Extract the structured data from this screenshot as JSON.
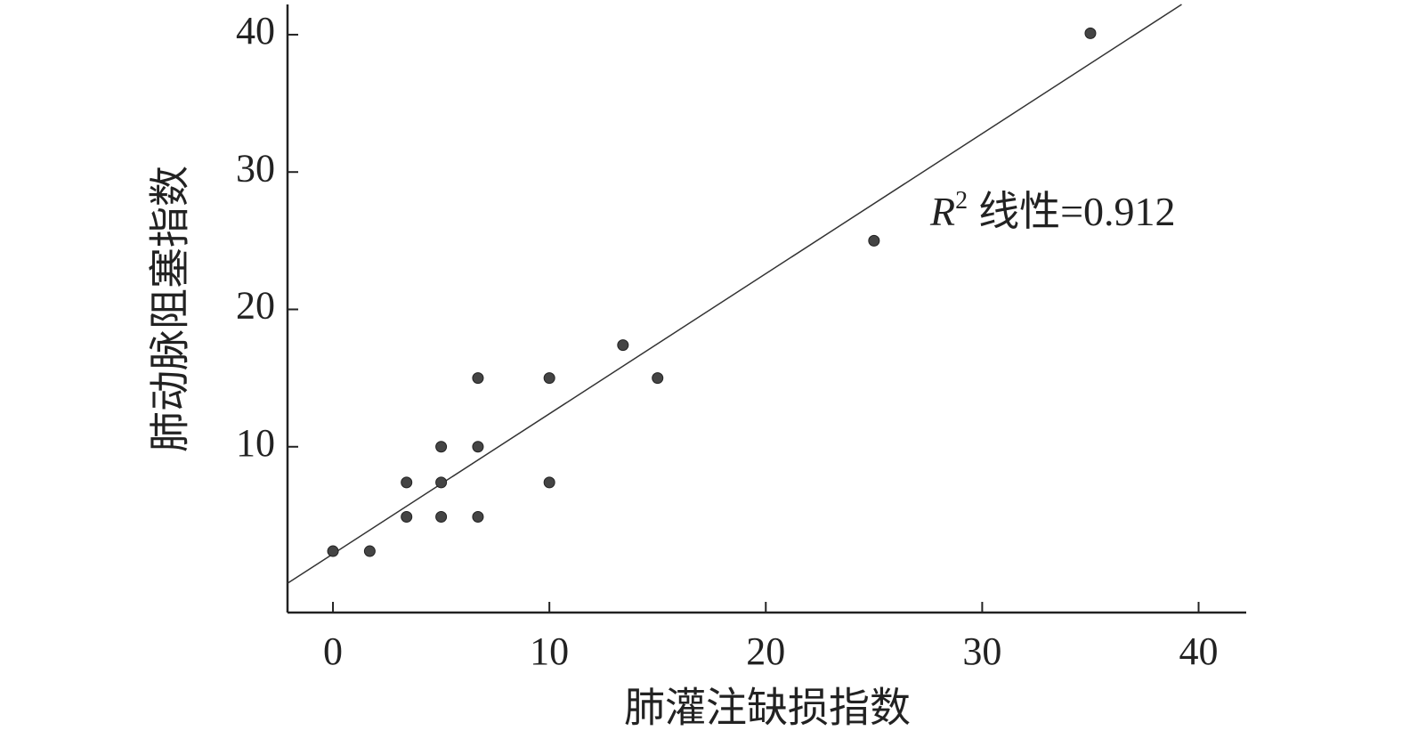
{
  "chart_data": {
    "type": "scatter",
    "x_label": "肺灌注缺损指数",
    "y_label": "肺动脉阻塞指数",
    "xlim": [
      -2.1,
      42.2
    ],
    "ylim": [
      -2.07,
      42.2
    ],
    "xticks": [
      0,
      10,
      20,
      30,
      40
    ],
    "yticks": [
      10,
      20,
      30,
      40
    ],
    "color": "#444444",
    "x": [
      0,
      1.7,
      3.4,
      3.4,
      5,
      5,
      5,
      6.7,
      6.7,
      6.7,
      10,
      10,
      13.4,
      15,
      25,
      35
    ],
    "values": [
      2.4,
      2.4,
      4.9,
      7.4,
      4.9,
      7.4,
      10,
      4.9,
      10,
      15,
      7.4,
      15,
      17.4,
      15,
      25,
      40.1
    ],
    "fit_line": {
      "slope": 1.02,
      "intercept": 2.2
    },
    "annotation": {
      "symbol": "R",
      "sup": "2",
      "text": "线性=0.912"
    }
  }
}
